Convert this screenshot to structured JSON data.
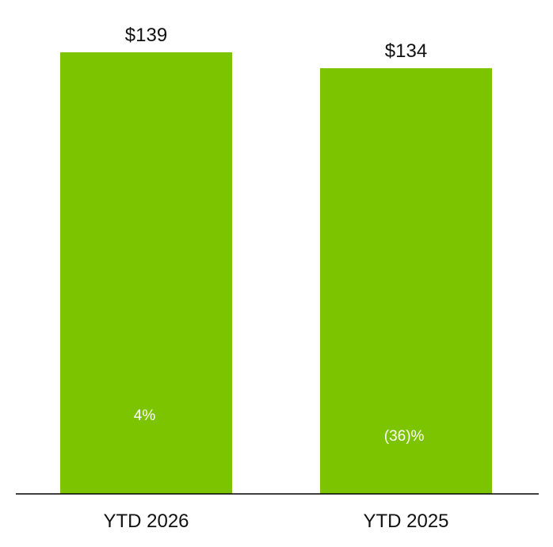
{
  "chart_data": {
    "type": "bar",
    "categories": [
      "YTD 2026",
      "YTD 2025"
    ],
    "values": [
      139,
      134
    ],
    "value_labels": [
      "$139",
      "$134"
    ],
    "growth_labels": [
      "4%",
      "(36)%"
    ],
    "title": "",
    "xlabel": "",
    "ylabel": "",
    "ylim": [
      0,
      139
    ],
    "grid": false,
    "legend": "none",
    "colors": {
      "bar": "#7DC400",
      "axis": "#000000",
      "text": "#111111",
      "inner_text": "#ffffff"
    }
  }
}
